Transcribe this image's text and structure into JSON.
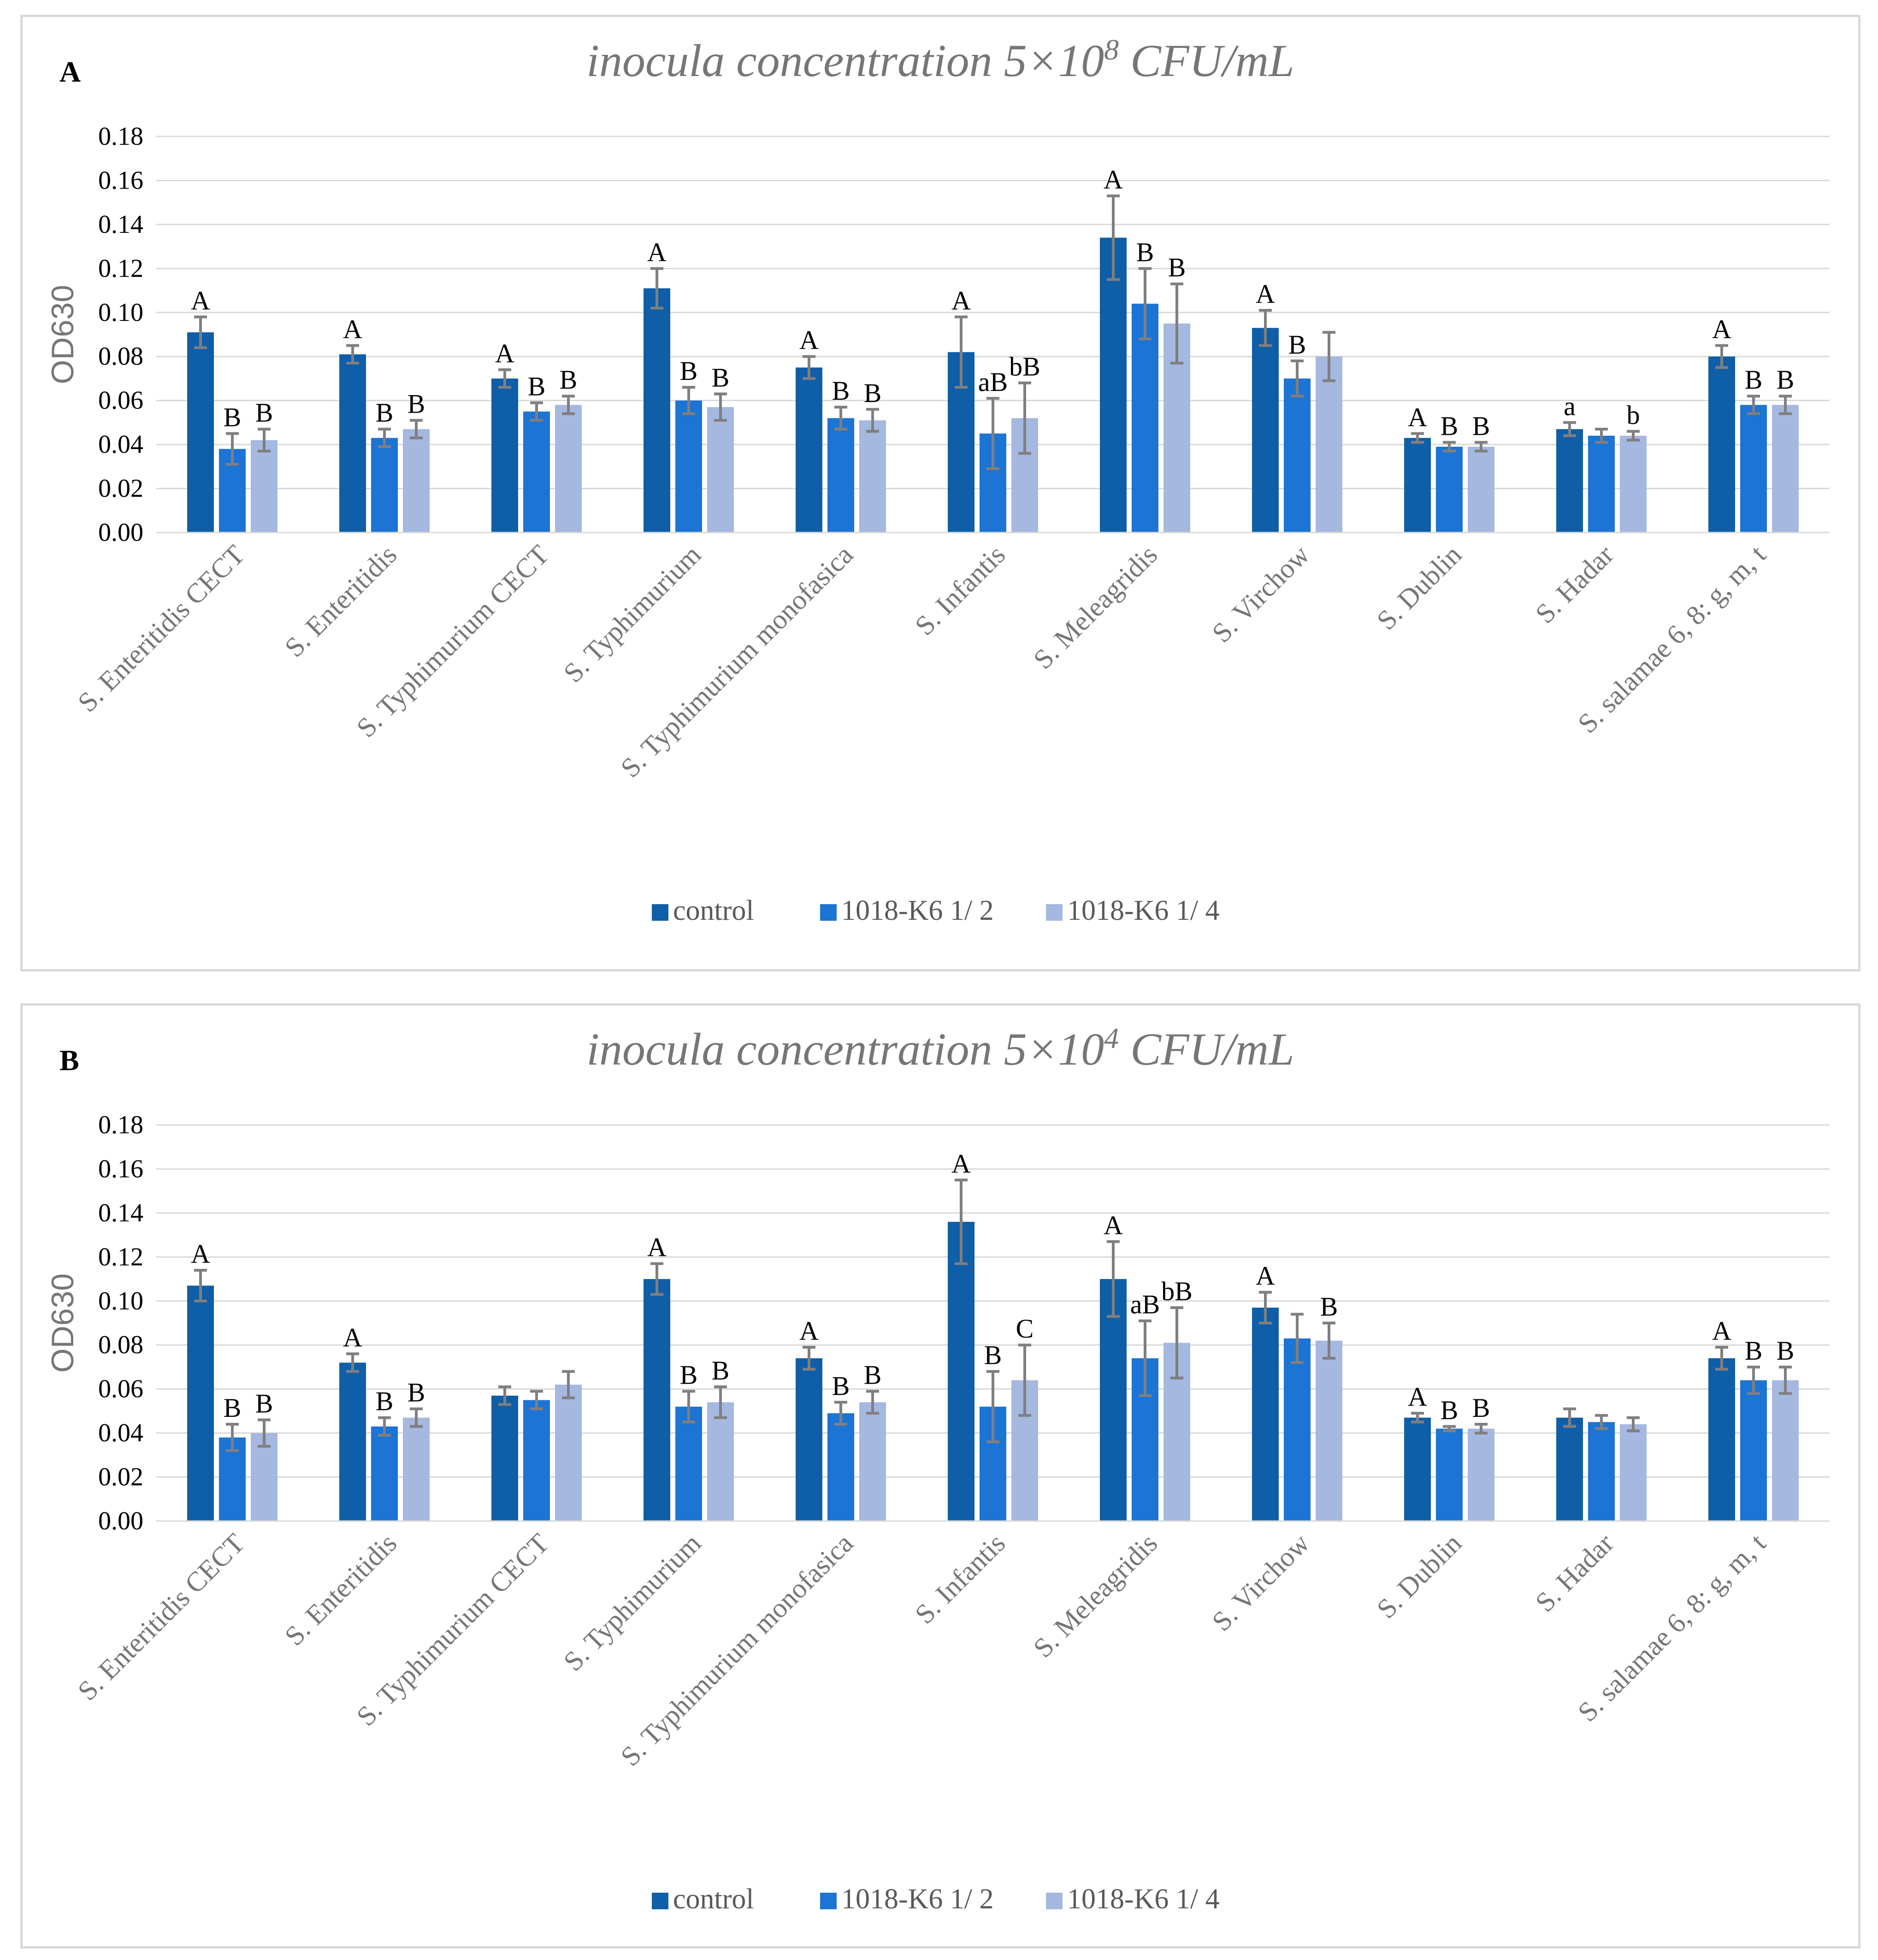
{
  "colors": {
    "control": "#0f5ea8",
    "half": "#1c74d4",
    "quarter": "#a5b8e0"
  },
  "chart_data": [
    {
      "type": "bar",
      "panel_label": "A",
      "title": "inocula concentration 5×10",
      "title_sup": "8",
      "title_suffix": " CFU/mL",
      "ylabel": "OD630",
      "xlabel": "",
      "ylim": [
        0,
        0.18
      ],
      "yticks": [
        "0.00",
        "0.02",
        "0.04",
        "0.06",
        "0.08",
        "0.10",
        "0.12",
        "0.14",
        "0.16",
        "0.18"
      ],
      "grid": true,
      "legend_position": "bottom",
      "categories": [
        "S. Enteritidis CECT",
        "S. Enteritidis",
        "S. Typhimurium CECT",
        "S. Typhimurium",
        "S. Typhimurium monofasica",
        "S. Infantis",
        "S. Meleagridis",
        "S. Virchow",
        "S. Dublin",
        "S. Hadar",
        "S. salamae 6, 8: g, m, t"
      ],
      "series": [
        {
          "name": "control",
          "color": "#0f5ea8",
          "values": [
            0.091,
            0.081,
            0.07,
            0.111,
            0.075,
            0.082,
            0.134,
            0.093,
            0.043,
            0.047,
            0.08
          ],
          "errors": [
            0.007,
            0.004,
            0.004,
            0.009,
            0.005,
            0.016,
            0.019,
            0.008,
            0.002,
            0.003,
            0.005
          ],
          "labels": [
            "A",
            "A",
            "A",
            "A",
            "A",
            "A",
            "A",
            "A",
            "A",
            "a",
            "A"
          ]
        },
        {
          "name": "1018-K6 1/ 2",
          "color": "#1c74d4",
          "values": [
            0.038,
            0.043,
            0.055,
            0.06,
            0.052,
            0.045,
            0.104,
            0.07,
            0.039,
            0.044,
            0.058
          ],
          "errors": [
            0.007,
            0.004,
            0.004,
            0.006,
            0.005,
            0.016,
            0.016,
            0.008,
            0.002,
            0.003,
            0.004
          ],
          "labels": [
            "B",
            "B",
            "B",
            "B",
            "B",
            "aB",
            "B",
            "B",
            "B",
            "",
            "B"
          ]
        },
        {
          "name": "1018-K6 1/ 4",
          "color": "#a5b8e0",
          "values": [
            0.042,
            0.047,
            0.058,
            0.057,
            0.051,
            0.052,
            0.095,
            0.08,
            0.039,
            0.044,
            0.058
          ],
          "errors": [
            0.005,
            0.004,
            0.004,
            0.006,
            0.005,
            0.016,
            0.018,
            0.011,
            0.002,
            0.002,
            0.004
          ],
          "labels": [
            "B",
            "B",
            "B",
            "B",
            "B",
            "bB",
            "B",
            "",
            "B",
            "b",
            "B"
          ]
        }
      ]
    },
    {
      "type": "bar",
      "panel_label": "B",
      "title": "inocula concentration 5×10",
      "title_sup": "4",
      "title_suffix": " CFU/mL",
      "ylabel": "OD630",
      "xlabel": "",
      "ylim": [
        0,
        0.18
      ],
      "yticks": [
        "0.00",
        "0.02",
        "0.04",
        "0.06",
        "0.08",
        "0.10",
        "0.12",
        "0.14",
        "0.16",
        "0.18"
      ],
      "grid": true,
      "legend_position": "bottom",
      "categories": [
        "S. Enteritidis CECT",
        "S. Enteritidis",
        "S. Typhimurium CECT",
        "S. Typhimurium",
        "S. Typhimurium monofasica",
        "S. Infantis",
        "S. Meleagridis",
        "S. Virchow",
        "S. Dublin",
        "S. Hadar",
        "S. salamae 6, 8: g, m, t"
      ],
      "series": [
        {
          "name": "control",
          "color": "#0f5ea8",
          "values": [
            0.107,
            0.072,
            0.057,
            0.11,
            0.074,
            0.136,
            0.11,
            0.097,
            0.047,
            0.047,
            0.074
          ],
          "errors": [
            0.007,
            0.004,
            0.004,
            0.007,
            0.005,
            0.019,
            0.017,
            0.007,
            0.002,
            0.004,
            0.005
          ],
          "labels": [
            "A",
            "A",
            "",
            "A",
            "A",
            "A",
            "A",
            "A",
            "A",
            "",
            "A"
          ]
        },
        {
          "name": "1018-K6 1/ 2",
          "color": "#1c74d4",
          "values": [
            0.038,
            0.043,
            0.055,
            0.052,
            0.049,
            0.052,
            0.074,
            0.083,
            0.042,
            0.045,
            0.064
          ],
          "errors": [
            0.006,
            0.004,
            0.004,
            0.007,
            0.005,
            0.016,
            0.017,
            0.011,
            0.001,
            0.003,
            0.006
          ],
          "labels": [
            "B",
            "B",
            "",
            "B",
            "B",
            "B",
            "aB",
            "",
            "B",
            "",
            "B"
          ]
        },
        {
          "name": "1018-K6 1/ 4",
          "color": "#a5b8e0",
          "values": [
            0.04,
            0.047,
            0.062,
            0.054,
            0.054,
            0.064,
            0.081,
            0.082,
            0.042,
            0.044,
            0.064
          ],
          "errors": [
            0.006,
            0.004,
            0.006,
            0.007,
            0.005,
            0.016,
            0.016,
            0.008,
            0.002,
            0.003,
            0.006
          ],
          "labels": [
            "B",
            "B",
            "",
            "B",
            "B",
            "C",
            "bB",
            "B",
            "B",
            "",
            "B"
          ]
        }
      ]
    }
  ]
}
